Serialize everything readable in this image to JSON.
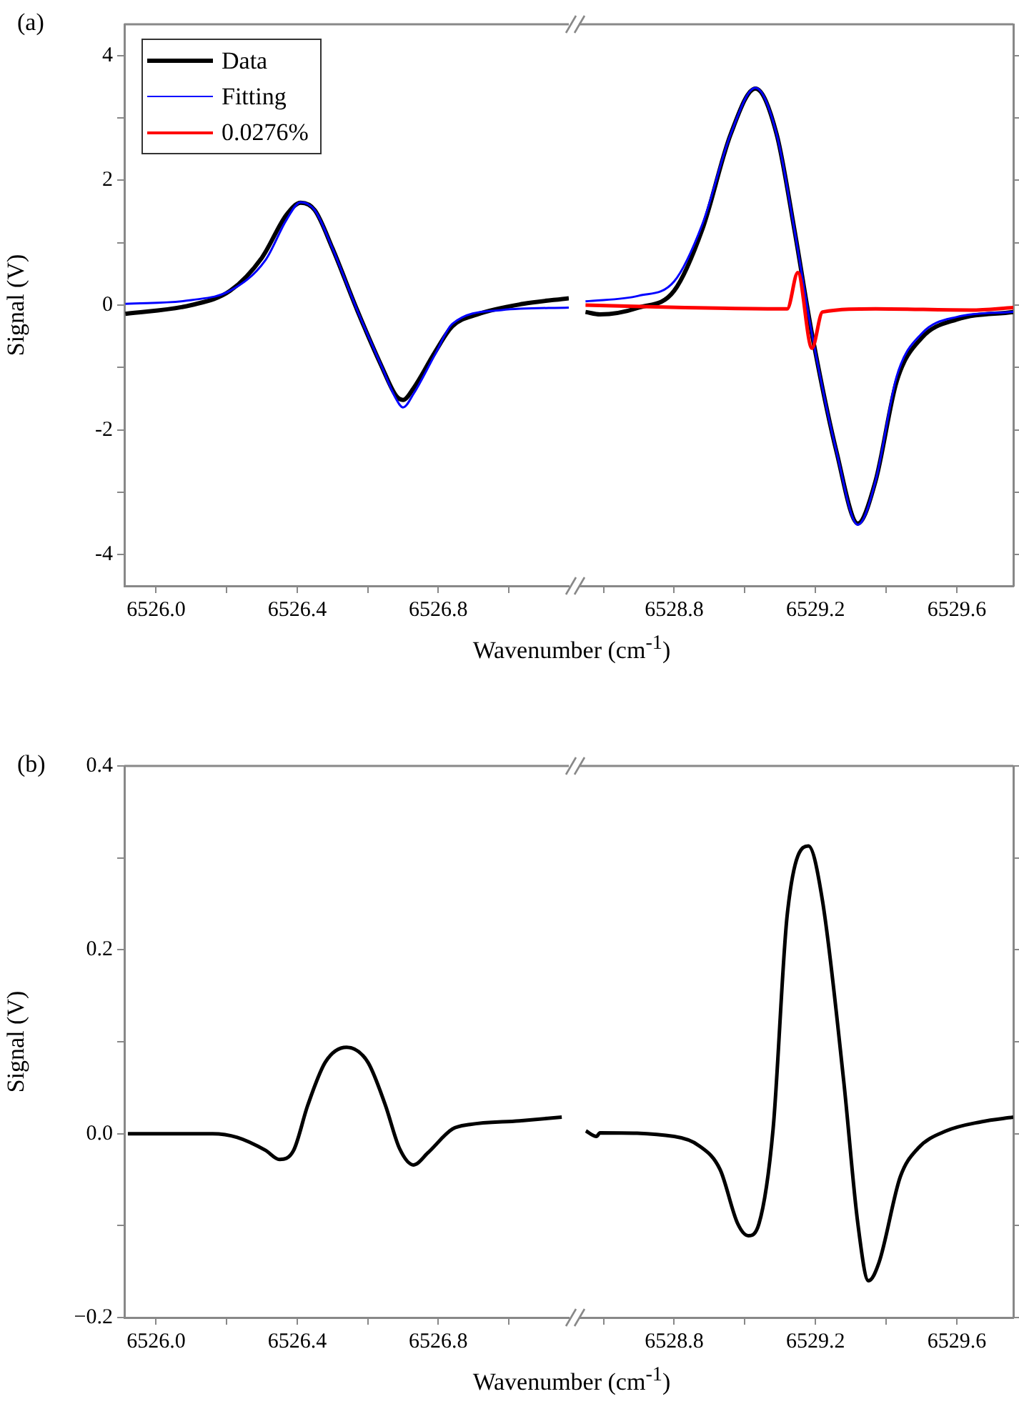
{
  "chart_data": [
    {
      "type": "line",
      "title": "(a)",
      "xlabel": "Wavenumber (cm$^{-1}$)",
      "ylabel": "Signal (V)",
      "xlim": [
        6525.91,
        6527.17
      ],
      "ylim": [
        -4.5,
        4.5
      ],
      "xticks": [
        {
          "value": 6526,
          "label": "6526.0"
        },
        {
          "value": 6526.2,
          "label": null
        },
        6526.4,
        {
          "value": 6526.6,
          "label": null
        },
        6526.8,
        {
          "value": 6527,
          "label": null
        }
      ],
      "yticks": [
        -4,
        {
          "value": -3,
          "label": null
        },
        -2,
        {
          "value": -1,
          "label": null
        },
        0,
        {
          "value": 1,
          "label": null
        },
        2,
        {
          "value": 3,
          "label": null
        },
        4
      ],
      "legend": "top left",
      "series": [
        {
          "name": "Data",
          "color": "#000000",
          "x": [
            6525.913,
            6526.1,
            6526.21,
            6526.3,
            6526.37,
            6526.41,
            6526.45,
            6526.5,
            6526.57,
            6526.64,
            6526.68,
            6526.7,
            6526.73,
            6526.79,
            6526.84,
            6526.91,
            6527.04,
            6527.17
          ],
          "values": [
            -0.14,
            0,
            0.23,
            0.76,
            1.45,
            1.64,
            1.52,
            0.91,
            -0.08,
            -0.99,
            -1.45,
            -1.52,
            -1.33,
            -0.76,
            -0.34,
            -0.15,
            0.02,
            0.11
          ]
        },
        {
          "name": "Fitting",
          "color": "#0000ff",
          "x": [
            6525.913,
            6526.1,
            6526.21,
            6526.31,
            6526.37,
            6526.41,
            6526.45,
            6526.5,
            6526.57,
            6526.64,
            6526.68,
            6526.7,
            6526.73,
            6526.79,
            6526.84,
            6526.98,
            6527.17
          ],
          "values": [
            0.02,
            0.08,
            0.23,
            0.72,
            1.37,
            1.65,
            1.52,
            0.91,
            -0.08,
            -0.99,
            -1.5,
            -1.64,
            -1.42,
            -0.8,
            -0.3,
            -0.08,
            -0.04
          ]
        },
        {
          "name": "0.0276%",
          "color": "#ff0000"
        }
      ]
    },
    {
      "type": "line",
      "tick_labels": "x",
      "xlim": [
        6528.53,
        6529.76
      ],
      "ylim": [
        -4.5,
        4.5
      ],
      "xticks": [
        {
          "value": 6528.6,
          "label": null
        },
        6528.8,
        {
          "value": 6529,
          "label": null
        },
        6529.2,
        {
          "value": 6529.4,
          "label": null
        },
        6529.6
      ],
      "yticks": [
        -4,
        -3,
        -2,
        -1,
        0,
        1,
        2,
        3,
        4
      ],
      "series": [
        {
          "color": "#000000",
          "x": [
            6528.549,
            6528.59,
            6528.7,
            6528.8,
            6528.88,
            6528.96,
            6529.03,
            6529.09,
            6529.14,
            6529.19,
            6529.26,
            6529.32,
            6529.37,
            6529.43,
            6529.5,
            6529.6,
            6529.76
          ],
          "values": [
            -0.11,
            -0.15,
            -0.04,
            0.23,
            1.22,
            2.74,
            3.47,
            2.74,
            1.22,
            -0.46,
            -2.36,
            -3.5,
            -2.82,
            -1.22,
            -0.53,
            -0.23,
            -0.11
          ]
        },
        {
          "color": "#0000ff",
          "x": [
            6528.549,
            6528.7,
            6528.8,
            6528.88,
            6528.96,
            6529.03,
            6529.09,
            6529.14,
            6529.19,
            6529.26,
            6529.32,
            6529.37,
            6529.43,
            6529.5,
            6529.6,
            6529.76
          ],
          "values": [
            0.06,
            0.15,
            0.38,
            1.3,
            2.74,
            3.48,
            2.74,
            1.22,
            -0.46,
            -2.36,
            -3.52,
            -2.82,
            -1.14,
            -0.46,
            -0.19,
            -0.11
          ]
        },
        {
          "color": "#ff0000",
          "x": [
            6528.549,
            6528.83,
            6529.12,
            6529.15,
            6529.19,
            6529.22,
            6529.37,
            6529.64,
            6529.76
          ],
          "values": [
            0,
            -0.04,
            -0.06,
            0.52,
            -0.69,
            -0.11,
            -0.06,
            -0.08,
            -0.04
          ]
        }
      ]
    },
    {
      "type": "line",
      "title": "(b)",
      "xlabel": "Wavenumber (cm$^{-1}$)",
      "ylabel": "Signal (V)",
      "xlim": [
        6525.91,
        6527.17
      ],
      "ylim": [
        -0.2,
        0.4
      ],
      "xticks": [
        {
          "value": 6526,
          "label": "6526.0"
        },
        {
          "value": 6526.2,
          "label": null
        },
        6526.4,
        {
          "value": 6526.6,
          "label": null
        },
        6526.8,
        {
          "value": 6527,
          "label": null
        }
      ],
      "yticks": [
        {
          "value": -0.2,
          "label": "−0.2"
        },
        {
          "value": -0.1,
          "label": null
        },
        {
          "value": 0,
          "label": "0.0"
        },
        {
          "value": 0.1,
          "label": null
        },
        0.2,
        {
          "value": 0.3,
          "label": null
        },
        0.4
      ],
      "series": [
        {
          "color": "#000000",
          "x": [
            6525.92,
            6526.16,
            6526.23,
            6526.31,
            6526.35,
            6526.39,
            6526.43,
            6526.48,
            6526.54,
            6526.6,
            6526.65,
            6526.69,
            6526.73,
            6526.77,
            6526.84,
            6526.89,
            6527.03,
            6527.15
          ],
          "values": [
            0,
            0,
            -0.004,
            -0.018,
            -0.028,
            -0.018,
            0.031,
            0.078,
            0.094,
            0.078,
            0.031,
            -0.016,
            -0.034,
            -0.021,
            0.005,
            0.01,
            0.014,
            0.018
          ]
        }
      ]
    },
    {
      "type": "line",
      "tick_labels": "x",
      "xlim": [
        6528.53,
        6529.76
      ],
      "ylim": [
        -0.2,
        0.4
      ],
      "xticks": [
        {
          "value": 6528.6,
          "label": null
        },
        6528.8,
        {
          "value": 6529,
          "label": null
        },
        6529.2,
        {
          "value": 6529.4,
          "label": null
        },
        6529.6
      ],
      "yticks": [
        -0.2,
        -0.1,
        0,
        0.1,
        0.2,
        0.3,
        0.4
      ],
      "series": [
        {
          "color": "#000000",
          "x": [
            6528.55,
            6528.58,
            6528.59,
            6528.8,
            6528.87,
            6528.93,
            6528.98,
            6529.01,
            6529.04,
            6529.08,
            6529.12,
            6529.18,
            6529.22,
            6529.28,
            6529.32,
            6529.35,
            6529.38,
            6529.44,
            6529.49,
            6529.57,
            6529.67,
            6529.76
          ],
          "values": [
            0.003,
            -0.003,
            0.001,
            -0.003,
            -0.013,
            -0.039,
            -0.098,
            -0.111,
            -0.098,
            0.005,
            0.238,
            0.313,
            0.253,
            0.057,
            -0.098,
            -0.16,
            -0.14,
            -0.047,
            -0.016,
            0.003,
            0.013,
            0.018
          ]
        }
      ]
    }
  ]
}
